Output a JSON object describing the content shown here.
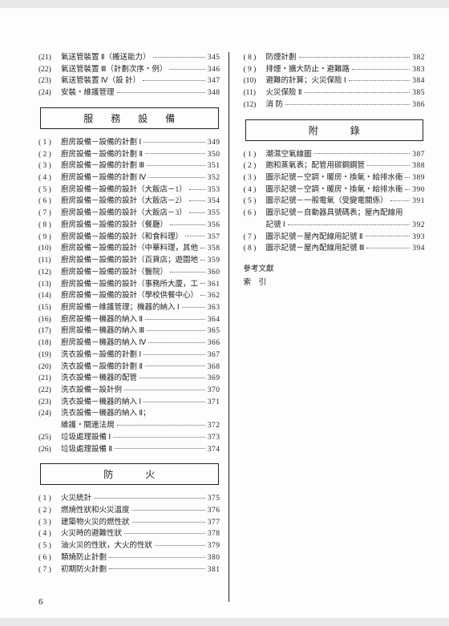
{
  "left": {
    "pre": [
      {
        "n": "(21)",
        "t": "氣送管裝置 Ⅱ（搬送能力）",
        "p": "345"
      },
      {
        "n": "(22)",
        "t": "氣送管裝置 Ⅲ（計劃次序・例）",
        "p": "346"
      },
      {
        "n": "(23)",
        "t": "氣送管裝置 Ⅳ（設 計）",
        "p": "347"
      },
      {
        "n": "(24)",
        "t": "安裝・維護管理",
        "p": "348"
      }
    ],
    "section1": "服務設備",
    "list1": [
      {
        "n": "( 1 )",
        "t": "廚房設備－設備的計劃 Ⅰ",
        "p": "349"
      },
      {
        "n": "( 2 )",
        "t": "廚房設備－設備的計劃 Ⅱ",
        "p": "350"
      },
      {
        "n": "( 3 )",
        "t": "廚房設備－設備的計劃 Ⅲ",
        "p": "351"
      },
      {
        "n": "( 4 )",
        "t": "廚房設備－設備的計劃 Ⅳ",
        "p": "352"
      },
      {
        "n": "( 5 )",
        "t": "廚房設備－設備的設計（大飯店－1）",
        "p": "353"
      },
      {
        "n": "( 6 )",
        "t": "廚房設備－設備的設計（大飯店－2）",
        "p": "354"
      },
      {
        "n": "( 7 )",
        "t": "廚房設備－設備的設計（大飯店－3）",
        "p": "355"
      },
      {
        "n": "( 8 )",
        "t": "廚房設備－設備的設計（餐廳）",
        "p": "356"
      },
      {
        "n": "( 9 )",
        "t": "廚房設備－設備的設計（和食料理）",
        "p": "357"
      },
      {
        "n": "(10)",
        "t": "廚房設備－設備的設計（中華料理，其他）",
        "p": "358"
      },
      {
        "n": "(11)",
        "t": "廚房設備－設備的設計（百貨店；遊園地）",
        "p": "359"
      },
      {
        "n": "(12)",
        "t": "廚房設備－設備的設計（醫院）",
        "p": "360"
      },
      {
        "n": "(13)",
        "t": "廚房設備－設備的設計（事務所大廈，工廠）",
        "p": "361"
      },
      {
        "n": "(14)",
        "t": "廚房設備－設備的設計（學校供餐中心）",
        "p": "362"
      },
      {
        "n": "(15)",
        "t": "廚房設備－維護管理；機器的納入 Ⅰ",
        "p": "363"
      },
      {
        "n": "(16)",
        "t": "廚房設備－機器的納入 Ⅱ",
        "p": "364"
      },
      {
        "n": "(17)",
        "t": "廚房設備－機器的納入 Ⅲ",
        "p": "365"
      },
      {
        "n": "(18)",
        "t": "廚房設備－機器的納入 Ⅳ",
        "p": "366"
      },
      {
        "n": "(19)",
        "t": "洗衣設備－設備的計劃 Ⅰ",
        "p": "367"
      },
      {
        "n": "(20)",
        "t": "洗衣設備－設備的計劃 Ⅱ",
        "p": "368"
      },
      {
        "n": "(21)",
        "t": "洗衣設備－機器的配管",
        "p": "369"
      },
      {
        "n": "(22)",
        "t": "洗衣設備－設計例",
        "p": "370"
      },
      {
        "n": "(23)",
        "t": "洗衣設備－機器的納入 Ⅰ",
        "p": "371"
      },
      {
        "n": "(24)",
        "t": "洗衣設備－機器的納入 Ⅱ；",
        "p": ""
      }
    ],
    "list1cont": {
      "t": "維護・關連法規",
      "p": "372"
    },
    "list1b": [
      {
        "n": "(25)",
        "t": "垃圾處理設備 Ⅰ",
        "p": "373"
      },
      {
        "n": "(26)",
        "t": "垃圾處理設備 Ⅱ",
        "p": "374"
      }
    ],
    "section2": "防火",
    "list2": [
      {
        "n": "( 1 )",
        "t": "火災統計",
        "p": "375"
      },
      {
        "n": "( 2 )",
        "t": "燃燒性狀和火災溫度",
        "p": "376"
      },
      {
        "n": "( 3 )",
        "t": "建築物火災的燃性狀",
        "p": "377"
      },
      {
        "n": "( 4 )",
        "t": "火災時的避難性狀",
        "p": "378"
      },
      {
        "n": "( 5 )",
        "t": "油火災的性狀，大火的性狀",
        "p": "379"
      },
      {
        "n": "( 6 )",
        "t": "類燒防止計劃",
        "p": "380"
      },
      {
        "n": "( 7 )",
        "t": "初期防火計劃",
        "p": "381"
      }
    ]
  },
  "right": {
    "pre": [
      {
        "n": "( 8 )",
        "t": "防煙計劃",
        "p": "382"
      },
      {
        "n": "( 9 )",
        "t": "排煙・擴大防止・避難路",
        "p": "383"
      },
      {
        "n": "(10)",
        "t": "避難的計算；火災保險 Ⅰ",
        "p": "384"
      },
      {
        "n": "(11)",
        "t": "火災保險 Ⅱ",
        "p": "385"
      },
      {
        "n": "(12)",
        "t": "消 防",
        "p": "386"
      }
    ],
    "section1": "附錄",
    "list1": [
      {
        "n": "( 1 )",
        "t": "潮濕空氣線圖",
        "p": "387"
      },
      {
        "n": "( 2 )",
        "t": "飽和蒸氣表；配管用碳鋼鋼管",
        "p": "388"
      },
      {
        "n": "( 3 )",
        "t": "圖示記號－空調・暖房・換氣・給排水衛生 Ⅰ",
        "p": "389"
      },
      {
        "n": "( 4 )",
        "t": "圖示記號－空調・暖房・換氣・給排水衛生 Ⅱ",
        "p": "390"
      },
      {
        "n": "( 5 )",
        "t": "圖示記號－一般電氣（受變電關係）",
        "p": "391"
      },
      {
        "n": "( 6 )",
        "t": "圖示記號－自動器具號碼表；屋內配線用",
        "p": ""
      }
    ],
    "list1cont": {
      "t": "記號 Ⅰ",
      "p": "392"
    },
    "list1b": [
      {
        "n": "( 7 )",
        "t": "圖示記號－屋內配線用記號 Ⅱ",
        "p": "393"
      },
      {
        "n": "( 8 )",
        "t": "圖示記號－屋內配線用記號 Ⅲ",
        "p": "394"
      }
    ],
    "plain": [
      "參考文獻",
      "索　引"
    ]
  },
  "pageNumber": "6"
}
